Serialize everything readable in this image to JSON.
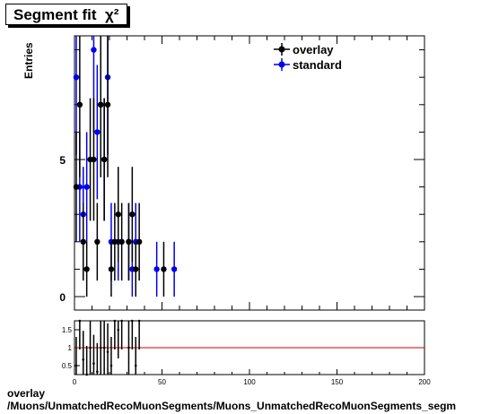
{
  "title": {
    "main": "Segment fit",
    "symbol": "χ²"
  },
  "ylabel": "Entries",
  "footer": {
    "line1": "overlay",
    "line2": "/Muons/UnmatchedRecoMuonSegments/Muons_UnmatchedRecoMuonSegments_segm"
  },
  "legend": {
    "overlay": "overlay",
    "standard": "standard"
  },
  "colors": {
    "overlay": "#000000",
    "standard": "#0000ee",
    "ratio_line": "#cc0000"
  },
  "chart_data": [
    {
      "type": "scatter",
      "title": "Segment fit χ²",
      "xlabel": "",
      "ylabel": "Entries",
      "xlim": [
        0,
        200
      ],
      "ylim": [
        0,
        9
      ],
      "yticks": [
        0,
        5
      ],
      "legend_position": "top-right",
      "series": [
        {
          "name": "overlay",
          "points": [
            [
              1,
              4
            ],
            [
              3,
              7
            ],
            [
              5,
              2
            ],
            [
              7,
              1
            ],
            [
              9,
              5
            ],
            [
              11,
              5
            ],
            [
              13,
              2
            ],
            [
              15,
              7
            ],
            [
              17,
              5
            ],
            [
              19,
              7
            ],
            [
              21,
              1
            ],
            [
              23,
              2
            ],
            [
              25,
              3
            ],
            [
              27,
              2
            ],
            [
              31,
              2
            ],
            [
              33,
              3
            ],
            [
              35,
              1
            ],
            [
              37,
              2
            ],
            [
              51,
              1
            ]
          ]
        },
        {
          "name": "standard",
          "points": [
            [
              1,
              8
            ],
            [
              3,
              4
            ],
            [
              5,
              3
            ],
            [
              7,
              4
            ],
            [
              11,
              9
            ],
            [
              13,
              6
            ],
            [
              15,
              7
            ],
            [
              17,
              5
            ],
            [
              19,
              8
            ],
            [
              21,
              2
            ],
            [
              25,
              2
            ],
            [
              31,
              2
            ],
            [
              33,
              1
            ],
            [
              35,
              2
            ],
            [
              47,
              1
            ],
            [
              57,
              1
            ]
          ]
        }
      ]
    },
    {
      "type": "scatter",
      "title": "",
      "xlabel": "",
      "ylabel": "",
      "xlim": [
        0,
        200
      ],
      "ylim": [
        0.25,
        1.75
      ],
      "yticks": [
        0.5,
        1,
        1.5
      ],
      "xticks": [
        0,
        50,
        100,
        150,
        200
      ],
      "reference_line": 1,
      "series": [
        {
          "name": "ratio",
          "points": [
            [
              1,
              0.5
            ],
            [
              3,
              1.75
            ],
            [
              5,
              0.67
            ],
            [
              7,
              0.25
            ],
            [
              9,
              1.0
            ],
            [
              11,
              0.56
            ],
            [
              13,
              0.33
            ],
            [
              15,
              1.0
            ],
            [
              17,
              1.0
            ],
            [
              19,
              0.88
            ],
            [
              21,
              0.5
            ],
            [
              23,
              1.75
            ],
            [
              25,
              1.5
            ],
            [
              27,
              1.75
            ],
            [
              31,
              1.0
            ],
            [
              33,
              1.75
            ],
            [
              35,
              0.5
            ],
            [
              37,
              1.75
            ]
          ]
        }
      ]
    }
  ]
}
